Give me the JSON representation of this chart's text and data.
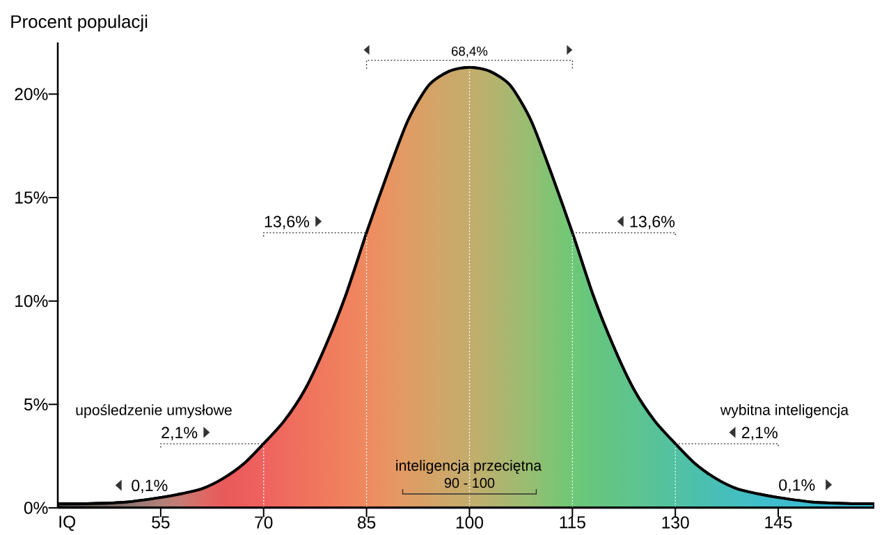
{
  "chart_data": {
    "type": "area",
    "xlabel": "IQ",
    "ylabel": "Procent populacji",
    "x": [
      40,
      45,
      50,
      55,
      58,
      61,
      64,
      67,
      70,
      73,
      76,
      79,
      82,
      85,
      88,
      91,
      94,
      97,
      100,
      103,
      106,
      109,
      112,
      115,
      118,
      121,
      124,
      127,
      130,
      133,
      136,
      139,
      142,
      145,
      150,
      155,
      159
    ],
    "series": [
      {
        "color": "#000000",
        "colors": [
          "#3c3c3c",
          "#635a58",
          "#8c7470",
          "#b08078",
          "#c77a74",
          "#dc6a66",
          "#e85a5a",
          "#ec5c5c",
          "#ee6260",
          "#ef6a5e",
          "#f0725e",
          "#f07a5e",
          "#f0805e",
          "#ef8a60",
          "#e99462",
          "#e09c64",
          "#d6a266",
          "#cca86a",
          "#c4ac6c",
          "#b6b26e",
          "#a6b870",
          "#96be72",
          "#80c474",
          "#6ec876",
          "#66c67e",
          "#62c486",
          "#5ec48e",
          "#58c298",
          "#52c2a2",
          "#4cc0ac",
          "#48beb6",
          "#44bec0",
          "#40bec8",
          "#3ebcce",
          "#3cbcd2",
          "#3cbcd4",
          "#40bcd4"
        ],
        "values": [
          0.2,
          0.21,
          0.28,
          0.5,
          0.68,
          0.92,
          1.4,
          2.1,
          3.1,
          4.2,
          5.7,
          7.8,
          10.3,
          13.3,
          16.1,
          18.7,
          20.4,
          21.1,
          21.3,
          21.1,
          20.4,
          18.7,
          16.1,
          13.3,
          10.3,
          7.8,
          5.7,
          4.2,
          3.1,
          2.1,
          1.4,
          0.92,
          0.68,
          0.5,
          0.28,
          0.21,
          0.2
        ]
      }
    ],
    "xlim": [
      40,
      159
    ],
    "ylim": [
      0,
      22.5
    ],
    "xticks": [
      55,
      70,
      85,
      100,
      115,
      130,
      145
    ],
    "yticks": [
      {
        "value": 0,
        "label": "0%"
      },
      {
        "value": 5,
        "label": "5%"
      },
      {
        "value": 10,
        "label": "10%"
      },
      {
        "value": 15,
        "label": "15%"
      },
      {
        "value": 20,
        "label": "20%"
      }
    ],
    "ref_lines": [
      {
        "axis": "x",
        "value": 70,
        "color": "#ffffff",
        "line_style": "dotted"
      },
      {
        "axis": "x",
        "value": 85,
        "color": "#ffffff",
        "line_style": "dotted"
      },
      {
        "axis": "x",
        "value": 100,
        "color": "#ffffff",
        "line_style": "dotted"
      },
      {
        "axis": "x",
        "value": 115,
        "color": "#ffffff",
        "line_style": "dotted"
      },
      {
        "axis": "x",
        "value": 130,
        "color": "#ffffff",
        "line_style": "dotted"
      }
    ],
    "annotations": [
      "68,4%",
      {
        "text": "13,6%",
        "x": 85,
        "y": 13.3
      },
      {
        "text": "13,6%",
        "x": 115,
        "y": 13.3
      },
      "upośledzenie umysłowe",
      "wybitna inteligencja",
      {
        "text": "2,1%",
        "x": 70,
        "y": 3.1
      },
      {
        "text": "2,1%",
        "x": 130,
        "y": 3.1
      },
      "inteligencja przeciętna",
      "0,1%",
      "90 - 100",
      "0,1%"
    ],
    "marker": "none",
    "line_style": "solid"
  }
}
